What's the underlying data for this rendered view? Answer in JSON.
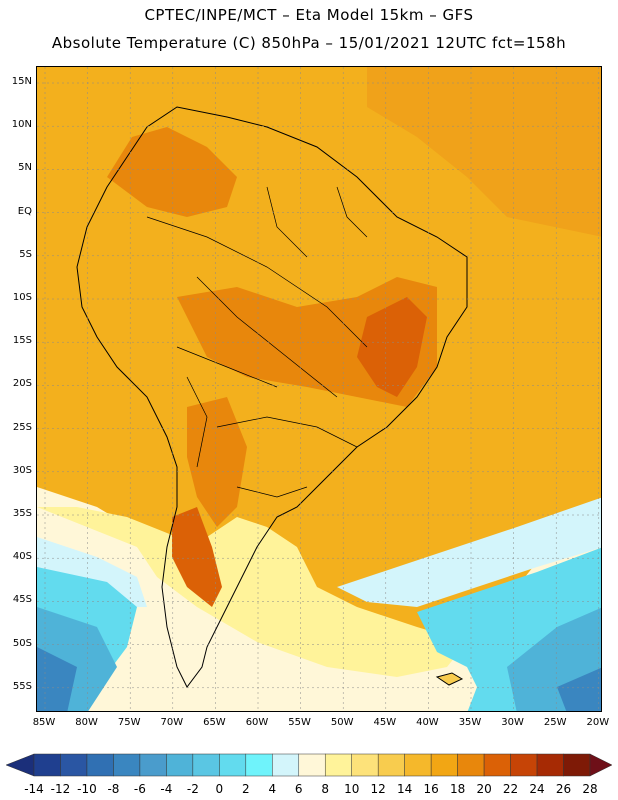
{
  "title_line1": "CPTEC/INPE/MCT –  Eta Model 15km – GFS",
  "title_line2": "Absolute Temperature (C) 850hPa – 15/01/2021 12UTC fct=158h",
  "lat_labels": [
    "15N",
    "10N",
    "5N",
    "EQ",
    "5S",
    "10S",
    "15S",
    "20S",
    "25S",
    "30S",
    "35S",
    "40S",
    "45S",
    "50S",
    "55S"
  ],
  "lon_labels": [
    "85W",
    "80W",
    "75W",
    "70W",
    "65W",
    "60W",
    "55W",
    "50W",
    "45W",
    "40W",
    "35W",
    "30W",
    "25W",
    "20W"
  ],
  "colorbar": {
    "labels": [
      "-14",
      "-12",
      "-10",
      "-8",
      "-6",
      "-4",
      "-2",
      "0",
      "2",
      "4",
      "6",
      "8",
      "10",
      "12",
      "14",
      "16",
      "18",
      "20",
      "22",
      "24",
      "26",
      "28"
    ],
    "colors": [
      "#1f3f8f",
      "#2a56a3",
      "#3070b3",
      "#3a86c0",
      "#4a9ccc",
      "#4fb3d8",
      "#5ac6e3",
      "#62dbee",
      "#6ff3fb",
      "#d3f5fb",
      "#fff7d8",
      "#fff39a",
      "#fde27a",
      "#f8cc4e",
      "#f5b82b",
      "#f2a614",
      "#e8870c",
      "#db6106",
      "#c64406",
      "#a62a04",
      "#7e1a06"
    ]
  },
  "map": {
    "base_color": "#f3b01d",
    "ocean_north_color": "#f0a21a",
    "colors": {
      "warm_deep": "#db6106",
      "warm": "#e8870c",
      "mild": "#f8cc4e",
      "pale_yellow": "#fff39a",
      "cream": "#fff7d8",
      "pale_cyan": "#d3f5fb",
      "cyan": "#62dbee",
      "sky": "#4fb3d8",
      "blue": "#3a86c0",
      "outline": "#000000"
    }
  }
}
